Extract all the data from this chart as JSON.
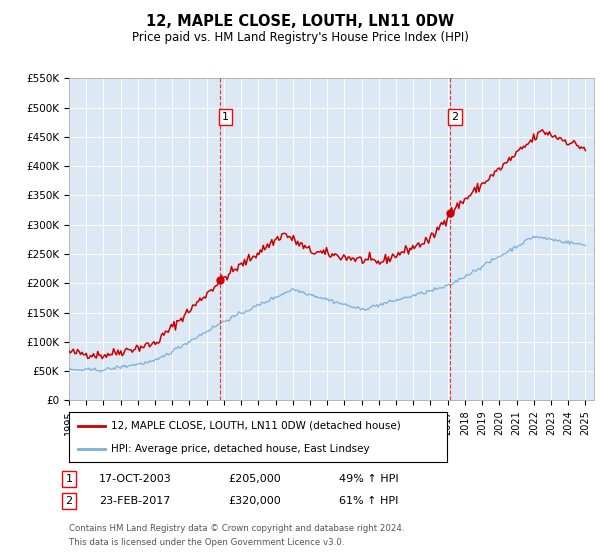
{
  "title": "12, MAPLE CLOSE, LOUTH, LN11 0DW",
  "subtitle": "Price paid vs. HM Land Registry's House Price Index (HPI)",
  "legend_line1": "12, MAPLE CLOSE, LOUTH, LN11 0DW (detached house)",
  "legend_line2": "HPI: Average price, detached house, East Lindsey",
  "sale1_date": "17-OCT-2003",
  "sale1_price": "£205,000",
  "sale1_hpi": "49% ↑ HPI",
  "sale2_date": "23-FEB-2017",
  "sale2_price": "£320,000",
  "sale2_hpi": "61% ↑ HPI",
  "footnote1": "Contains HM Land Registry data © Crown copyright and database right 2024.",
  "footnote2": "This data is licensed under the Open Government Licence v3.0.",
  "yticks": [
    0,
    50000,
    100000,
    150000,
    200000,
    250000,
    300000,
    350000,
    400000,
    450000,
    500000,
    550000
  ],
  "chart_bg": "#dce9f5",
  "red_line_color": "#cc0000",
  "blue_line_color": "#7aafdc",
  "marker_color": "#cc0000",
  "sale1_x": 2003.79,
  "sale2_x": 2017.12,
  "sale1_y": 205000,
  "sale2_y": 320000,
  "xmin": 1995,
  "xmax": 2025.5
}
